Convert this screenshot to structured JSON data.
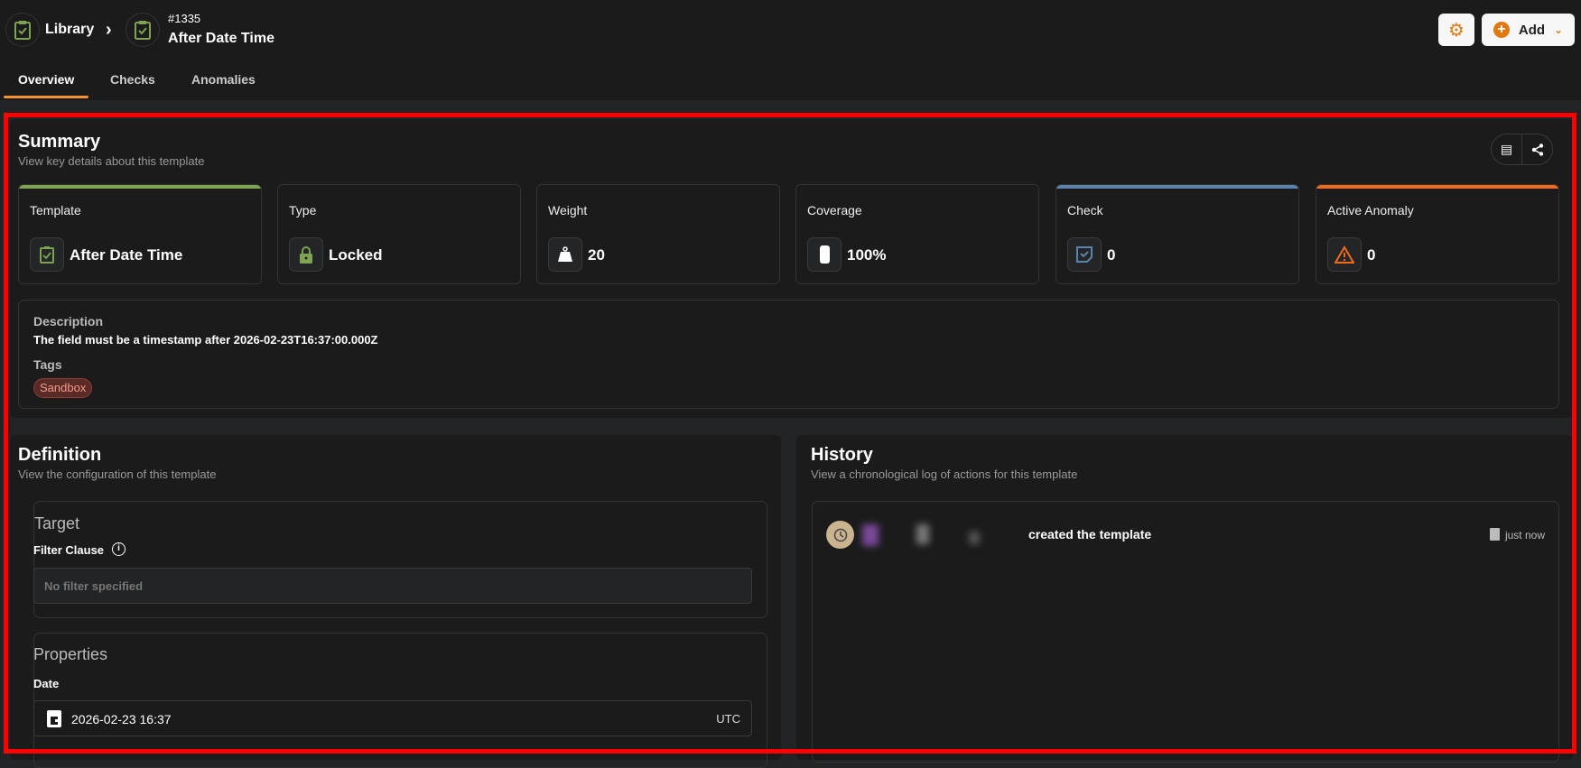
{
  "header": {
    "breadcrumb_root": "Library",
    "template_id": "#1335",
    "template_name": "After Date Time",
    "add_label": "Add"
  },
  "tabs": [
    {
      "label": "Overview",
      "active": true
    },
    {
      "label": "Checks"
    },
    {
      "label": "Anomalies"
    }
  ],
  "summary": {
    "title": "Summary",
    "subtitle": "View key details about this template",
    "cards": [
      {
        "label": "Template",
        "value": "After Date Time",
        "icon": "clipboard-check-icon",
        "accent": "#7ea452"
      },
      {
        "label": "Type",
        "value": "Locked",
        "icon": "lock-icon"
      },
      {
        "label": "Weight",
        "value": "20",
        "icon": "weight-icon"
      },
      {
        "label": "Coverage",
        "value": "100%",
        "icon": "coverage-icon"
      },
      {
        "label": "Check",
        "value": "0",
        "icon": "check-note-icon",
        "accent": "#5a84ad"
      },
      {
        "label": "Active Anomaly",
        "value": "0",
        "icon": "warning-icon",
        "accent": "#f26b1d"
      }
    ],
    "description_label": "Description",
    "description": "The field must be a timestamp after 2026-02-23T16:37:00.000Z",
    "tags_label": "Tags",
    "tags": [
      "Sandbox"
    ]
  },
  "definition": {
    "title": "Definition",
    "subtitle": "View the configuration of this template",
    "target_title": "Target",
    "filter_label": "Filter Clause",
    "filter_placeholder": "No filter specified",
    "properties_title": "Properties",
    "date_label": "Date",
    "date_value": "2026-02-23 16:37",
    "timezone": "UTC"
  },
  "history": {
    "title": "History",
    "subtitle": "View a chronological log of actions for this template",
    "entries": [
      {
        "action": "created the template",
        "time": "just now"
      }
    ]
  },
  "colors": {
    "accent": "#f7922e",
    "icon_orange": "#e07a10",
    "green": "#7ea452"
  }
}
